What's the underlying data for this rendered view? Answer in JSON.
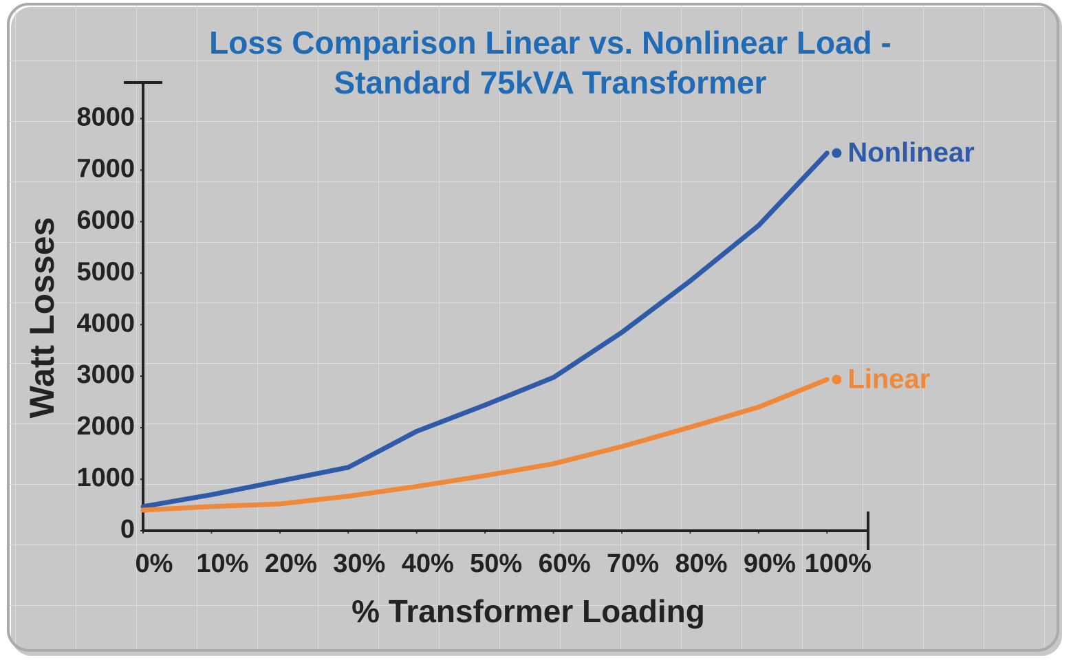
{
  "chart_data": {
    "type": "line",
    "title": "Loss Comparison Linear vs. Nonlinear Load -",
    "subtitle": "Standard 75kVA Transformer",
    "x_label": "% Transformer Loading",
    "y_label": "Watt Losses",
    "x": [
      0,
      10,
      20,
      30,
      40,
      50,
      60,
      70,
      80,
      90,
      100
    ],
    "series": [
      {
        "name": "Nonlinear",
        "color": "#2f5aa8",
        "values": [
          470,
          700,
          965,
          1230,
          1930,
          2440,
          2975,
          3850,
          4850,
          5925,
          7330
        ]
      },
      {
        "name": "Linear",
        "color": "#f0883a",
        "values": [
          400,
          470,
          520,
          670,
          860,
          1070,
          1300,
          1635,
          2010,
          2400,
          2935
        ]
      }
    ],
    "xlim": [
      0,
      106
    ],
    "ylim": [
      0,
      8700
    ],
    "xticks": [
      {
        "value": 0,
        "label": "0%"
      },
      {
        "value": 10,
        "label": "10%"
      },
      {
        "value": 20,
        "label": "20%"
      },
      {
        "value": 30,
        "label": "30%"
      },
      {
        "value": 40,
        "label": "40%"
      },
      {
        "value": 50,
        "label": "50%"
      },
      {
        "value": 60,
        "label": "60%"
      },
      {
        "value": 70,
        "label": "70%"
      },
      {
        "value": 80,
        "label": "80%"
      },
      {
        "value": 90,
        "label": "90%"
      },
      {
        "value": 100,
        "label": "100%"
      }
    ],
    "yticks": [
      0,
      1000,
      2000,
      3000,
      4000,
      5000,
      6000,
      7000,
      8000
    ]
  }
}
